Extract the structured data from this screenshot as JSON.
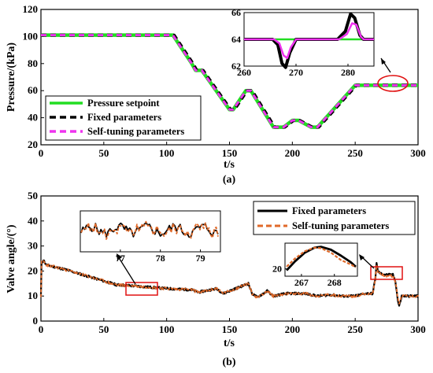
{
  "chart_data": [
    {
      "panel": "(a)",
      "type": "line",
      "xlabel": "t/s",
      "ylabel": "Pressure/(kPa)",
      "xlim": [
        0,
        300
      ],
      "ylim": [
        20,
        120
      ],
      "xticks": [
        "0",
        "50",
        "100",
        "150",
        "200",
        "250",
        "300"
      ],
      "yticks": [
        "20",
        "40",
        "60",
        "80",
        "100",
        "120"
      ],
      "legend_position": "lower-left",
      "series": [
        {
          "name": "Pressure setpoint",
          "color": "#22dd22",
          "style": "solid",
          "points": [
            [
              0,
              101
            ],
            [
              105,
              101
            ],
            [
              120,
              80
            ],
            [
              123,
              75
            ],
            [
              128,
              75
            ],
            [
              150,
              46
            ],
            [
              153,
              46
            ],
            [
              163,
              60
            ],
            [
              167,
              60
            ],
            [
              185,
              33
            ],
            [
              193,
              33
            ],
            [
              200,
              38
            ],
            [
              205,
              38
            ],
            [
              215,
              33
            ],
            [
              220,
              33
            ],
            [
              250,
              64
            ],
            [
              300,
              64
            ]
          ]
        },
        {
          "name": "Fixed parameters",
          "color": "#000000",
          "style": "dashed",
          "points": [
            [
              0,
              101
            ],
            [
              106,
              101
            ],
            [
              121,
              80
            ],
            [
              124,
              75
            ],
            [
              129,
              75
            ],
            [
              151,
              46
            ],
            [
              154,
              46
            ],
            [
              164,
              60
            ],
            [
              168,
              60
            ],
            [
              186,
              33
            ],
            [
              194,
              33
            ],
            [
              201,
              38
            ],
            [
              206,
              38
            ],
            [
              216,
              33
            ],
            [
              221,
              33
            ],
            [
              251,
              64
            ],
            [
              300,
              64
            ]
          ]
        },
        {
          "name": "Self-tuning parameters",
          "color": "#ee33ee",
          "style": "dashed",
          "points": [
            [
              0,
              101
            ],
            [
              105,
              101
            ],
            [
              120,
              80
            ],
            [
              123,
              75
            ],
            [
              128,
              75
            ],
            [
              150,
              46
            ],
            [
              153,
              46
            ],
            [
              163,
              60
            ],
            [
              167,
              60
            ],
            [
              185,
              33
            ],
            [
              193,
              33
            ],
            [
              200,
              38
            ],
            [
              205,
              38
            ],
            [
              215,
              33
            ],
            [
              220,
              33
            ],
            [
              250,
              64
            ],
            [
              300,
              64
            ]
          ]
        }
      ],
      "inset": {
        "xlim": [
          260,
          285
        ],
        "ylim": [
          62,
          66
        ],
        "xticks": [
          "260",
          "270",
          "280"
        ],
        "yticks": [
          "62",
          "64",
          "66"
        ],
        "series": [
          {
            "color": "#22dd22",
            "points": [
              [
                260,
                64
              ],
              [
                285,
                64
              ]
            ]
          },
          {
            "color": "#000000",
            "points": [
              [
                260,
                64
              ],
              [
                265.5,
                64
              ],
              [
                266.5,
                63.6
              ],
              [
                267.3,
                62.2
              ],
              [
                268,
                61.9
              ],
              [
                268.8,
                63
              ],
              [
                270,
                64
              ],
              [
                278,
                64
              ],
              [
                279.5,
                64.6
              ],
              [
                280.5,
                65.9
              ],
              [
                281.3,
                65.6
              ],
              [
                282.3,
                64.3
              ],
              [
                283,
                64
              ],
              [
                285,
                64
              ]
            ]
          },
          {
            "color": "#ee33ee",
            "points": [
              [
                260,
                64
              ],
              [
                265.8,
                64
              ],
              [
                266.8,
                63.7
              ],
              [
                267.6,
                62.8
              ],
              [
                268.3,
                62.6
              ],
              [
                269,
                63.4
              ],
              [
                270,
                64
              ],
              [
                278.3,
                64
              ],
              [
                279.8,
                64.4
              ],
              [
                280.8,
                65.2
              ],
              [
                281.6,
                65.1
              ],
              [
                282.5,
                64.2
              ],
              [
                283,
                64
              ],
              [
                285,
                64
              ]
            ]
          }
        ]
      }
    },
    {
      "panel": "(b)",
      "type": "line",
      "xlabel": "t/s",
      "ylabel": "Valve angle/(°)",
      "xlim": [
        0,
        300
      ],
      "ylim": [
        0,
        50
      ],
      "xticks": [
        "0",
        "50",
        "100",
        "150",
        "200",
        "250",
        "300"
      ],
      "yticks": [
        "0",
        "10",
        "20",
        "30",
        "40",
        "50"
      ],
      "legend_position": "upper-right",
      "series": [
        {
          "name": "Fixed parameters",
          "color": "#000000",
          "style": "solid",
          "points": [
            [
              0,
              10
            ],
            [
              0.5,
              23
            ],
            [
              2,
              24.5
            ],
            [
              4,
              22.5
            ],
            [
              20,
              20.5
            ],
            [
              40,
              17.5
            ],
            [
              60,
              14.5
            ],
            [
              75,
              14
            ],
            [
              100,
              13
            ],
            [
              120,
              12.5
            ],
            [
              125,
              11.5
            ],
            [
              130,
              12
            ],
            [
              140,
              13
            ],
            [
              145,
              11
            ],
            [
              150,
              12
            ],
            [
              160,
              14
            ],
            [
              165,
              15
            ],
            [
              168,
              11
            ],
            [
              172,
              9.5
            ],
            [
              180,
              12
            ],
            [
              185,
              10
            ],
            [
              195,
              11
            ],
            [
              200,
              11
            ],
            [
              210,
              11
            ],
            [
              220,
              10
            ],
            [
              230,
              10.5
            ],
            [
              240,
              10
            ],
            [
              250,
              10
            ],
            [
              258,
              11
            ],
            [
              264,
              11
            ],
            [
              266,
              17
            ],
            [
              267,
              23
            ],
            [
              268,
              20
            ],
            [
              270,
              19
            ],
            [
              275,
              18.5
            ],
            [
              280,
              18.5
            ],
            [
              282,
              16
            ],
            [
              284,
              8
            ],
            [
              285,
              6
            ],
            [
              287,
              10
            ],
            [
              300,
              10
            ]
          ]
        },
        {
          "name": "Self-tuning parameters",
          "color": "#e06a2a",
          "style": "dashed",
          "points": [
            [
              0,
              10
            ],
            [
              0.5,
              23.5
            ],
            [
              2,
              24
            ],
            [
              4,
              22.5
            ],
            [
              20,
              20.5
            ],
            [
              40,
              17.5
            ],
            [
              60,
              14.5
            ],
            [
              75,
              14
            ],
            [
              100,
              13
            ],
            [
              120,
              12.5
            ],
            [
              125,
              11.5
            ],
            [
              130,
              12
            ],
            [
              140,
              13
            ],
            [
              145,
              11
            ],
            [
              150,
              12
            ],
            [
              160,
              14
            ],
            [
              165,
              15
            ],
            [
              168,
              11
            ],
            [
              172,
              9.5
            ],
            [
              180,
              12
            ],
            [
              185,
              10
            ],
            [
              195,
              11
            ],
            [
              200,
              11
            ],
            [
              210,
              11
            ],
            [
              220,
              10
            ],
            [
              230,
              10.5
            ],
            [
              240,
              10
            ],
            [
              250,
              10
            ],
            [
              258,
              11
            ],
            [
              264,
              11
            ],
            [
              266,
              17
            ],
            [
              267,
              22.5
            ],
            [
              268,
              20
            ],
            [
              270,
              19
            ],
            [
              275,
              18
            ],
            [
              280,
              18
            ],
            [
              282,
              15.5
            ],
            [
              284,
              9
            ],
            [
              285,
              7
            ],
            [
              287,
              10
            ],
            [
              300,
              10
            ]
          ]
        }
      ],
      "insets": [
        {
          "xlim": [
            76,
            79.5
          ],
          "ylim": [
            13.5,
            15
          ],
          "xticks": [
            "77",
            "78",
            "79"
          ],
          "note": "noisy valve-angle trace around 14 degrees"
        },
        {
          "xlim": [
            266.5,
            268.7
          ],
          "ylim": [
            19,
            23.5
          ],
          "xticks": [
            "267",
            "268"
          ],
          "yticks": [
            "20"
          ],
          "note": "peak near 267.5 s"
        }
      ]
    }
  ]
}
